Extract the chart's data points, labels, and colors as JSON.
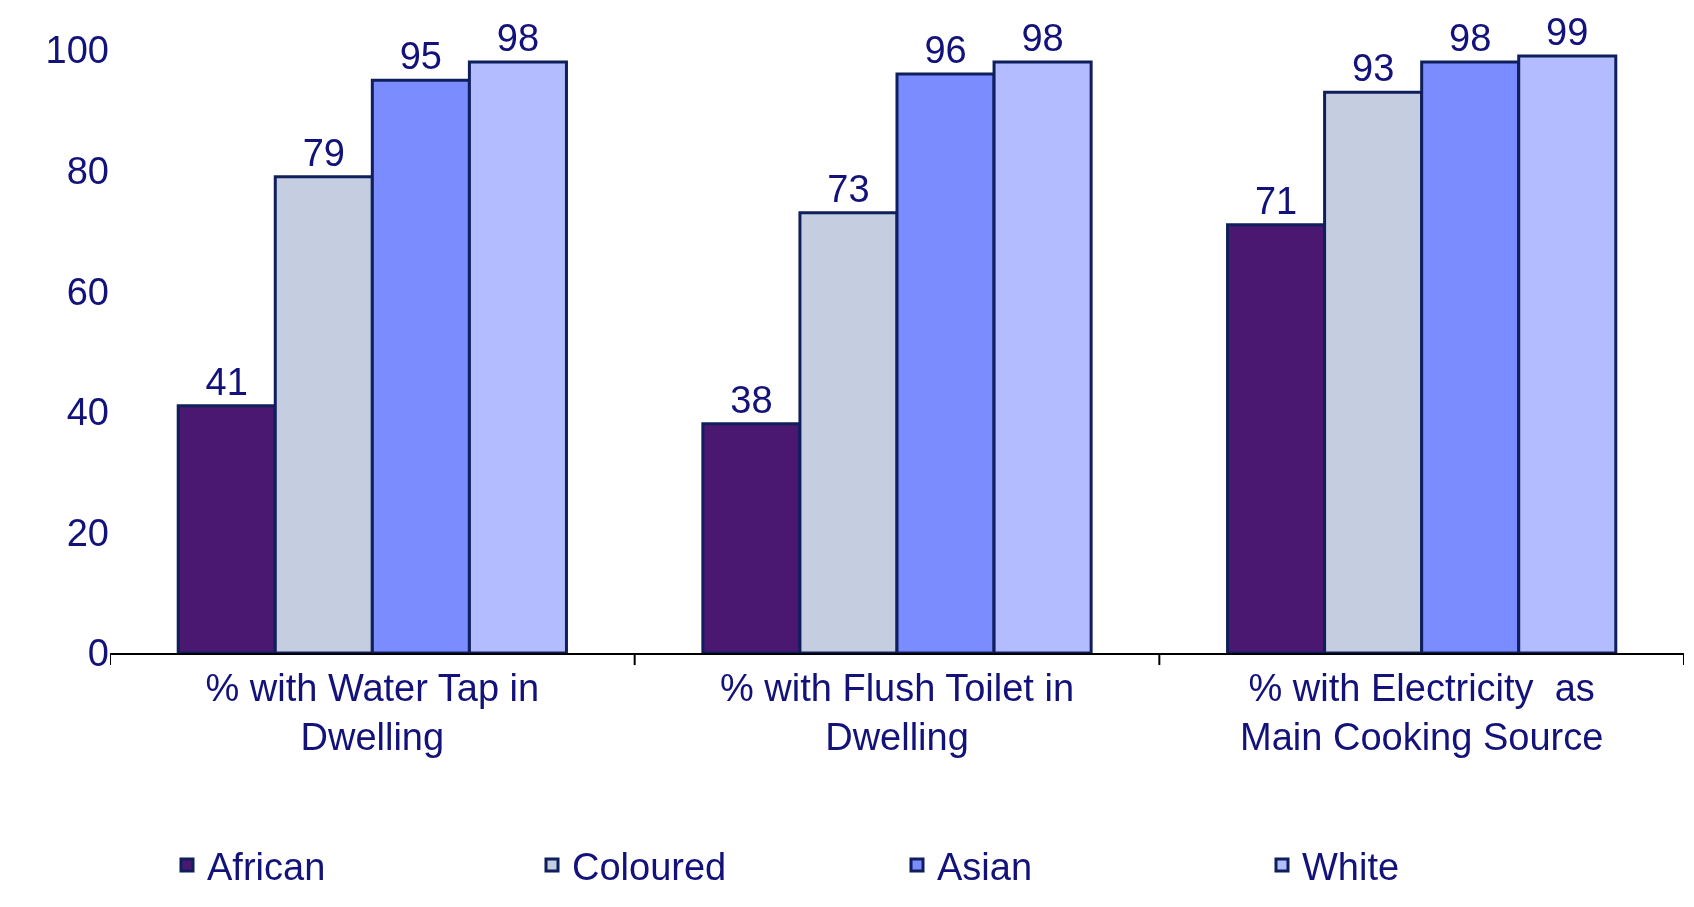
{
  "chart_data": {
    "type": "bar",
    "categories": [
      "% with Water Tap in\nDwelling",
      "% with Flush Toilet in\nDwelling",
      "% with Electricity  as\nMain Cooking Source"
    ],
    "series": [
      {
        "name": "African",
        "color": "#4a1870",
        "values": [
          41,
          38,
          71
        ]
      },
      {
        "name": "Coloured",
        "color": "#c5cee0",
        "values": [
          79,
          73,
          93
        ]
      },
      {
        "name": "Asian",
        "color": "#7a8cff",
        "values": [
          95,
          96,
          98
        ]
      },
      {
        "name": "White",
        "color": "#b3bcff",
        "values": [
          98,
          98,
          99
        ]
      }
    ],
    "ylim": [
      0,
      100
    ],
    "yticks": [
      0,
      20,
      40,
      60,
      80,
      100
    ],
    "legend": "bottom",
    "data_labels": true
  }
}
